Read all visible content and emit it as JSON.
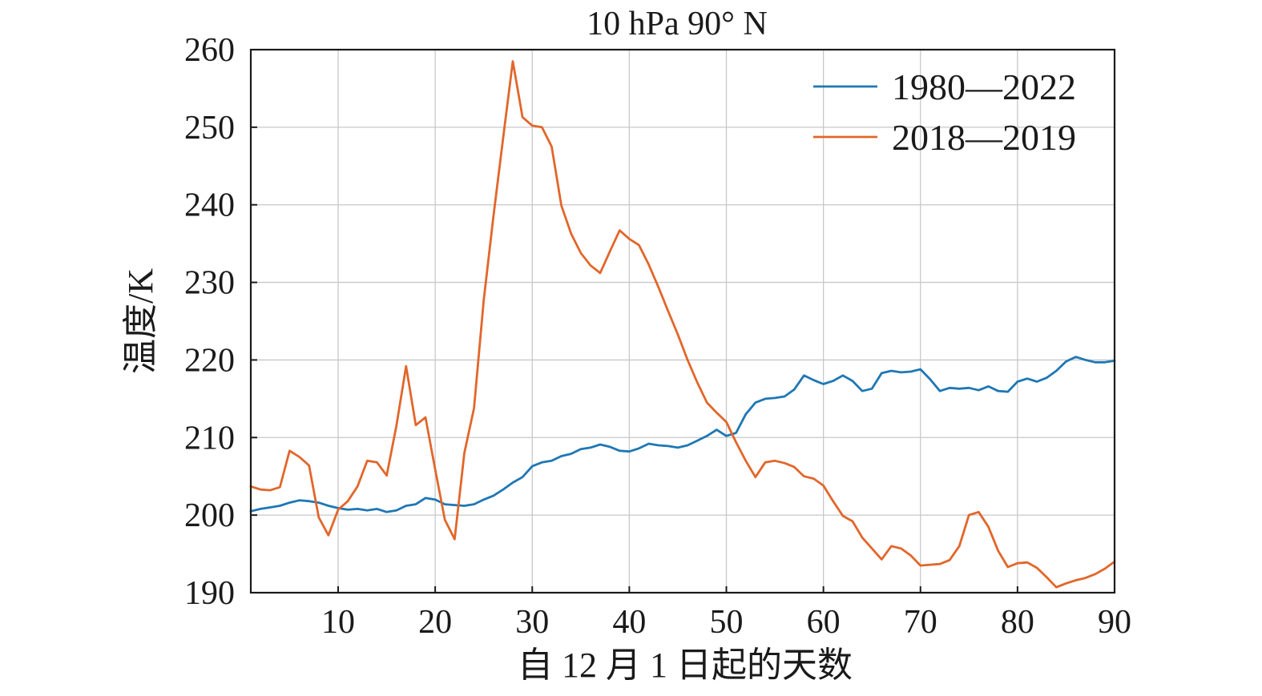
{
  "chart_data": {
    "type": "line",
    "title": "10 hPa 90° N",
    "xlabel": "自 12 月 1 日起的天数",
    "ylabel": "温度/K",
    "xlim": [
      1,
      90
    ],
    "ylim": [
      190,
      260
    ],
    "x_ticks": [
      10,
      20,
      30,
      40,
      50,
      60,
      70,
      80,
      90
    ],
    "y_ticks": [
      190,
      200,
      210,
      220,
      230,
      240,
      250,
      260
    ],
    "grid": true,
    "legend_position": "top-right",
    "x": [
      1,
      2,
      3,
      4,
      5,
      6,
      7,
      8,
      9,
      10,
      11,
      12,
      13,
      14,
      15,
      16,
      17,
      18,
      19,
      20,
      21,
      22,
      23,
      24,
      25,
      26,
      27,
      28,
      29,
      30,
      31,
      32,
      33,
      34,
      35,
      36,
      37,
      38,
      39,
      40,
      41,
      42,
      43,
      44,
      45,
      46,
      47,
      48,
      49,
      50,
      51,
      52,
      53,
      54,
      55,
      56,
      57,
      58,
      59,
      60,
      61,
      62,
      63,
      64,
      65,
      66,
      67,
      68,
      69,
      70,
      71,
      72,
      73,
      74,
      75,
      76,
      77,
      78,
      79,
      80,
      81,
      82,
      83,
      84,
      85,
      86,
      87,
      88,
      89,
      90
    ],
    "series": [
      {
        "name": "1980—2022",
        "color": "#1f77b4",
        "values": [
          200.5,
          200.8,
          201.0,
          201.2,
          201.6,
          201.9,
          201.8,
          201.6,
          201.2,
          200.9,
          200.7,
          200.8,
          200.6,
          200.8,
          200.4,
          200.6,
          201.2,
          201.4,
          202.2,
          202.0,
          201.4,
          201.3,
          201.2,
          201.4,
          202.0,
          202.5,
          203.3,
          204.2,
          204.9,
          206.3,
          206.8,
          207.0,
          207.6,
          207.9,
          208.5,
          208.7,
          209.1,
          208.8,
          208.3,
          208.2,
          208.6,
          209.2,
          209.0,
          208.9,
          208.7,
          209.0,
          209.6,
          210.2,
          211.0,
          210.2,
          210.6,
          213.0,
          214.5,
          215.0,
          215.1,
          215.3,
          216.2,
          218.0,
          217.4,
          216.9,
          217.3,
          218.0,
          217.3,
          216.0,
          216.3,
          218.3,
          218.6,
          218.4,
          218.5,
          218.8,
          217.5,
          216.0,
          216.4,
          216.3,
          216.4,
          216.1,
          216.6,
          216.0,
          215.9,
          217.2,
          217.6,
          217.2,
          217.7,
          218.6,
          219.8,
          220.4,
          220.0,
          219.7,
          219.7,
          219.9
        ]
      },
      {
        "name": "2018—2019",
        "color": "#e2662a",
        "values": [
          203.7,
          203.3,
          203.2,
          203.6,
          208.3,
          207.5,
          206.4,
          199.7,
          197.4,
          200.7,
          201.8,
          203.7,
          207.0,
          206.8,
          205.1,
          211.5,
          219.2,
          211.6,
          212.6,
          205.9,
          199.4,
          196.9,
          208.0,
          213.8,
          227.7,
          238.5,
          248.6,
          258.5,
          251.3,
          250.2,
          250.0,
          247.5,
          239.9,
          236.3,
          233.8,
          232.2,
          231.2,
          234.0,
          236.7,
          235.6,
          234.8,
          232.3,
          229.4,
          226.3,
          223.3,
          220.0,
          217.1,
          214.5,
          213.2,
          212.0,
          209.4,
          207.0,
          204.9,
          206.8,
          207.0,
          206.7,
          206.2,
          205.0,
          204.7,
          203.8,
          201.8,
          199.9,
          199.2,
          197.1,
          195.7,
          194.3,
          196.0,
          195.7,
          194.8,
          193.5,
          193.6,
          193.7,
          194.2,
          196.0,
          200.0,
          200.4,
          198.5,
          195.4,
          193.3,
          193.8,
          193.9,
          193.2,
          192.0,
          190.7,
          191.2,
          191.6,
          191.9,
          192.4,
          193.1,
          194.0
        ]
      }
    ]
  }
}
